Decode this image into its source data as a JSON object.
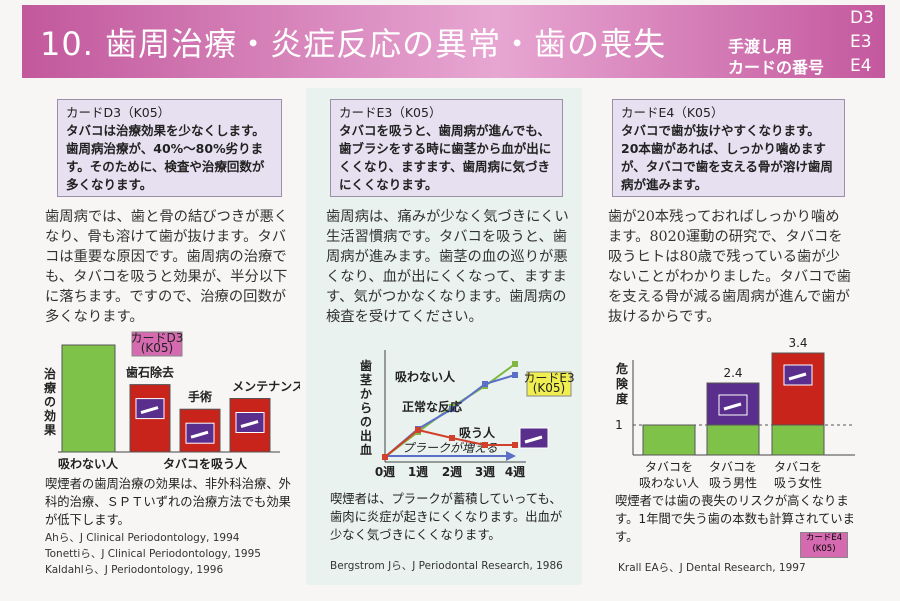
{
  "header": {
    "title": "10. 歯周治療・炎症反応の異常・歯の喪失",
    "note_lines": [
      "手渡し用",
      "カードの番号"
    ],
    "card_numbers": [
      "D3",
      "E3",
      "E4"
    ]
  },
  "panels": [
    {
      "card": {
        "label": "カードD3（K05）",
        "text": "タバコは治療効果を少なくします。歯周病治療が、40%～80%劣ります。そのために、検査や治療回数が多くなります。"
      },
      "body": "歯周病では、歯と骨の結びつきが悪くなり、骨も溶けて歯が抜けます。タバコは重要な原因です。歯周病の治療でも、タバコを吸うと効果が、半分以下に落ちます。ですので、治療の回数が多くなります。",
      "chart": {
        "type": "bar",
        "ylabel": "治療の効果",
        "categories": [
          "吸わない人",
          "歯石除去",
          "手術",
          "メンテナンス"
        ],
        "group_label": "タバコを吸う人",
        "values": [
          100,
          63,
          40,
          50
        ],
        "colors": [
          "#7fc24a",
          "#c8241c",
          "#c8241c",
          "#c8241c"
        ],
        "ylim": [
          0,
          100
        ],
        "tag": [
          "カードD3",
          "(K05)"
        ]
      },
      "caption": "喫煙者の歯周治療の効果は、非外科治療、外科的治療、ＳＰＴいずれの治療方法でも効果が低下します。",
      "refs": [
        "Ahら、J Clinical Periodontology, 1994",
        "Tonettiら、J Clinical Periodontology, 1995",
        "Kaldahlら、J Periodontology, 1996"
      ]
    },
    {
      "card": {
        "label": "カードE3（K05）",
        "text": "タバコを吸うと、歯周病が進んでも、歯ブラシをする時に歯茎から血が出にくくなり、ますます、歯周病に気づきにくくなります。"
      },
      "body": "歯周病は、痛みが少なく気づきにくい生活習慣病です。タバコを吸うと、歯周病が進みます。歯茎の血の巡りが悪くなり、血が出にくくなって、ますます、気がつかなくなります。歯周病の検査を受けてください。",
      "chart": {
        "type": "line",
        "ylabel": "歯茎からの出血",
        "categories": [
          "0週",
          "1週",
          "2週",
          "3週",
          "4週"
        ],
        "ylim": [
          0,
          10
        ],
        "series": [
          {
            "name": "吸わない人",
            "color": "#7fb842",
            "values": [
              0.5,
              3,
              5.5,
              7.6,
              9.8
            ]
          },
          {
            "name": "正常な反応",
            "color": "#5b6fc8",
            "values": [
              0.5,
              3.3,
              5.3,
              7.8,
              8.7
            ]
          },
          {
            "name": "吸う人",
            "color": "#d0402a",
            "values": [
              0.5,
              3.2,
              2.4,
              1.7,
              1.7
            ]
          }
        ],
        "annotation": "プラークが増える",
        "tag": [
          "カードE3",
          "(K05)"
        ]
      },
      "caption": "喫煙者は、プラークが蓄積していっても、歯肉に炎症が起きにくくなります。出血が少なく気づきにくくなります。",
      "refs": [
        "Bergstrom Jら、J Periodontal Research, 1986"
      ]
    },
    {
      "card": {
        "label": "カードE4（K05）",
        "text": "タバコで歯が抜けやすくなります。20本歯があれば、しっかり噛めますが、タバコで歯を支える骨が溶け歯周病が進みます。"
      },
      "body": "歯が20本残っておればしっかり噛めます。8020運動の研究で、タバコを吸うヒトは80歳で残っている歯が少ないことがわかりました。タバコで歯を支える骨が減る歯周病が進んで歯が抜けるからです。",
      "chart": {
        "type": "risk-bar",
        "ylabel": "危険度",
        "categories": [
          [
            "タバコを",
            "吸わない人"
          ],
          [
            "タバコを",
            "吸う男性"
          ],
          [
            "タバコを",
            "吸う女性"
          ]
        ],
        "values": [
          1,
          2.4,
          3.4
        ],
        "colors": [
          "#7fc24a",
          "#5a2e8c",
          "#c8241c"
        ],
        "ylim": [
          0,
          4
        ],
        "yticks": [
          1
        ],
        "tag": [
          "カードE4",
          "(K05)"
        ]
      },
      "caption": "喫煙者では歯の喪失のリスクが高くなります。1年間で失う歯の本数も計算されています。",
      "refs": [
        "Krall EAら、J Dental Research, 1997"
      ]
    }
  ]
}
